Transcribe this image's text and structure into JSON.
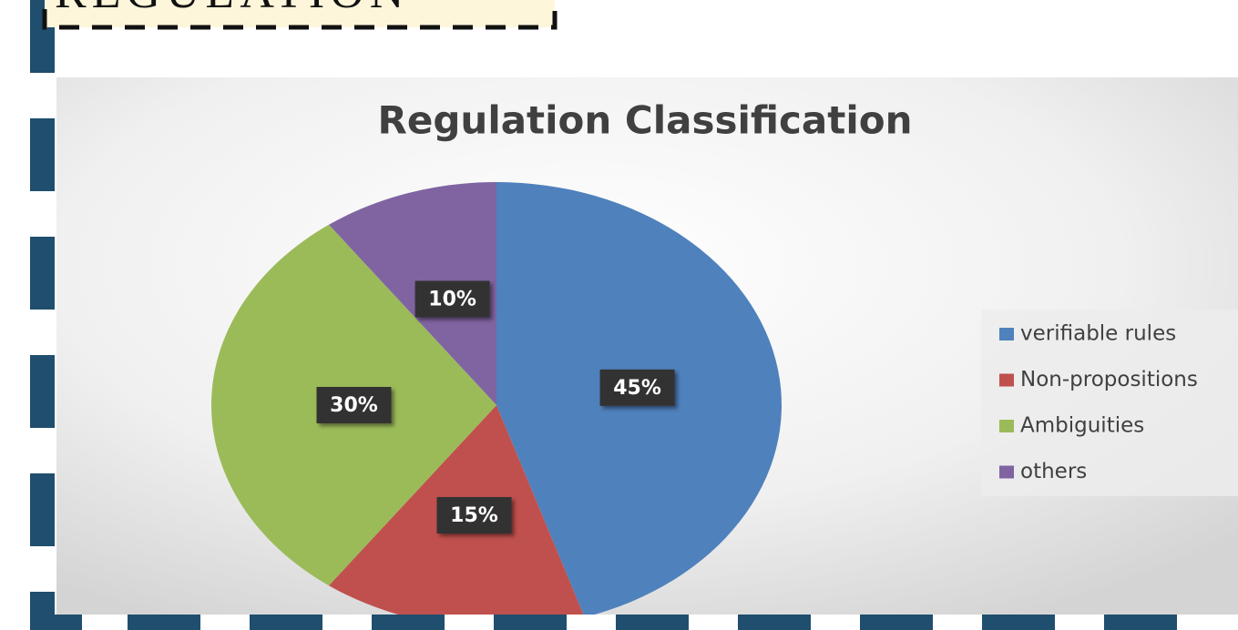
{
  "heading": "REGULATION",
  "chart_data": {
    "type": "pie",
    "title": "Regulation Classification",
    "categories": [
      "verifiable rules",
      "Non-propositions",
      "Ambiguities",
      "others"
    ],
    "values": [
      45,
      15,
      30,
      10
    ],
    "value_labels": [
      "45%",
      "15%",
      "30%",
      "10%"
    ],
    "colors": [
      "#4f81bd",
      "#c0504d",
      "#9bbb59",
      "#8064a2"
    ],
    "legend": "right"
  }
}
